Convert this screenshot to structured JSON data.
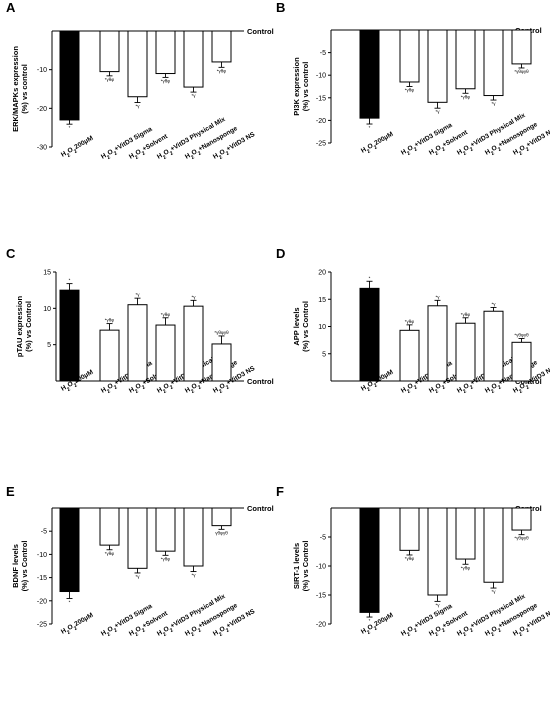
{
  "chart_data": [
    {
      "type": "bar",
      "panel": "A",
      "ylabel_lines": [
        "ERK/MAPKs expression",
        "(%) vs control"
      ],
      "reference_label": "Control",
      "ylim": [
        -30,
        0
      ],
      "yticks": [
        -10,
        -20,
        -30
      ],
      "categories": [
        "H₂O₂200µM",
        "H₂O₂+VitD3 Sigma",
        "H₂O₂+Solvent",
        "H₂O₂+VitD3 Physical Mix",
        "H₂O₂+Nanosponge",
        "H₂O₂+VitD3 NS"
      ],
      "values": [
        -23,
        -10.5,
        -17,
        -11,
        -14.5,
        -8
      ],
      "errors": [
        1.1,
        1.1,
        1.5,
        1.0,
        1.3,
        1.4
      ],
      "fill_colors": [
        "#000000",
        "#ffffff",
        "#ffffff",
        "#ffffff",
        "#ffffff",
        "#ffffff"
      ],
      "significance": [
        "*",
        "*γθφ",
        "*γ",
        "*γθφ",
        "*γ",
        "*γθφ"
      ]
    },
    {
      "type": "bar",
      "panel": "B",
      "ylabel_lines": [
        "PI3K expression",
        "(%) vs control"
      ],
      "reference_label": "Control",
      "ylim": [
        -25,
        0
      ],
      "yticks": [
        -5,
        -10,
        -15,
        -20,
        -25
      ],
      "categories": [
        "H₂O₂200µM",
        "H₂O₂+VitD3 Sigma",
        "H₂O₂+Solvent",
        "H₂O₂+VitD3 Physical Mix",
        "H₂O₂+Nanosponge",
        "H₂O₂+VitD3 NS"
      ],
      "values": [
        -19.5,
        -11.5,
        -16,
        -13,
        -14.5,
        -7.5
      ],
      "errors": [
        1.3,
        1.0,
        1.3,
        1.0,
        1.0,
        0.9
      ],
      "fill_colors": [
        "#000000",
        "#ffffff",
        "#ffffff",
        "#ffffff",
        "#ffffff",
        "#ffffff"
      ],
      "significance": [
        "*",
        "*γθφ",
        "*γ",
        "*γθφ",
        "*γ",
        "*γθφγθ"
      ]
    },
    {
      "type": "bar",
      "panel": "C",
      "ylabel_lines": [
        "pTAU expression",
        "(%) vs Control"
      ],
      "reference_label": "Control",
      "ylim": [
        0,
        15
      ],
      "yticks": [
        5,
        10,
        15
      ],
      "categories": [
        "H₂O₂200µM",
        "H₂O₂+VitD3 Sigma",
        "H₂O₂+Solvent",
        "H₂O₂+VitD3 Physical Mix",
        "H₂O₂+Nanosponge",
        "H₂O₂+VitD3 NS"
      ],
      "values": [
        12.5,
        7,
        10.5,
        7.7,
        10.3,
        5.1
      ],
      "errors": [
        0.9,
        0.9,
        0.9,
        1.0,
        0.8,
        1.1
      ],
      "fill_colors": [
        "#000000",
        "#ffffff",
        "#ffffff",
        "#ffffff",
        "#ffffff",
        "#ffffff"
      ],
      "significance": [
        "*",
        "*γθφ",
        "*γ",
        "*γθφ",
        "*γ",
        "*γθφγθ"
      ]
    },
    {
      "type": "bar",
      "panel": "D",
      "ylabel_lines": [
        "APP levels",
        "(%) vs Control"
      ],
      "reference_label": "Control",
      "ylim": [
        0,
        20
      ],
      "yticks": [
        5,
        10,
        15,
        20
      ],
      "categories": [
        "H₂O₂200µM",
        "H₂O₂+VitD3 Sigma",
        "H₂O₂+Solvent",
        "H₂O₂+VitD3 Physical Mix",
        "H₂O₂+Nanosponge",
        "H₂O₂+VitD3 NS"
      ],
      "values": [
        17,
        9.3,
        13.8,
        10.6,
        12.8,
        7.1
      ],
      "errors": [
        1.3,
        1.0,
        1.0,
        1.0,
        0.7,
        0.7
      ],
      "fill_colors": [
        "#000000",
        "#ffffff",
        "#ffffff",
        "#ffffff",
        "#ffffff",
        "#ffffff"
      ],
      "significance": [
        "*",
        "*γθφ",
        "*γ",
        "*γθφ",
        "*γ",
        "*γθφγθ"
      ]
    },
    {
      "type": "bar",
      "panel": "E",
      "ylabel_lines": [
        "BDNF levels",
        "(%) vs Control"
      ],
      "reference_label": "Control",
      "ylim": [
        -25,
        0
      ],
      "yticks": [
        -5,
        -10,
        -15,
        -20,
        -25
      ],
      "categories": [
        "H₂O₂200µM",
        "H₂O₂+VitD3 Sigma",
        "H₂O₂+Solvent",
        "H₂O₂+VitD3 Physical Mix",
        "H₂O₂+Nanosponge",
        "H₂O₂+VitD3 NS"
      ],
      "values": [
        -18,
        -8,
        -13,
        -9.3,
        -12.5,
        -3.8
      ],
      "errors": [
        1.5,
        1.0,
        1.0,
        0.9,
        1.2,
        0.8
      ],
      "fill_colors": [
        "#000000",
        "#ffffff",
        "#ffffff",
        "#ffffff",
        "#ffffff",
        "#ffffff"
      ],
      "significance": [
        "*",
        "*γθφ",
        "*γ",
        "*γθφ",
        "*γ",
        "γθφγθ"
      ]
    },
    {
      "type": "bar",
      "panel": "F",
      "ylabel_lines": [
        "SIRT-1 levels",
        "(%) vs Control"
      ],
      "reference_label": "Control",
      "ylim": [
        -20,
        0
      ],
      "yticks": [
        -5,
        -10,
        -15,
        -20
      ],
      "categories": [
        "H₂O₂200µM",
        "H₂O₂+VitD3 Sigma",
        "H₂O₂+Solvent",
        "H₂O₂+VitD3 Physical Mix",
        "H₂O₂+Nanosponge",
        "H₂O₂+VitD3 NS"
      ],
      "values": [
        -18,
        -7.3,
        -15,
        -8.8,
        -12.8,
        -3.8
      ],
      "errors": [
        0.8,
        0.8,
        1.1,
        0.9,
        1.0,
        0.8
      ],
      "fill_colors": [
        "#000000",
        "#ffffff",
        "#ffffff",
        "#ffffff",
        "#ffffff",
        "#ffffff"
      ],
      "significance": [
        "*",
        "*γθφ",
        "*γ",
        "*γθφ",
        "*γ",
        "*γθφγθ"
      ]
    }
  ]
}
